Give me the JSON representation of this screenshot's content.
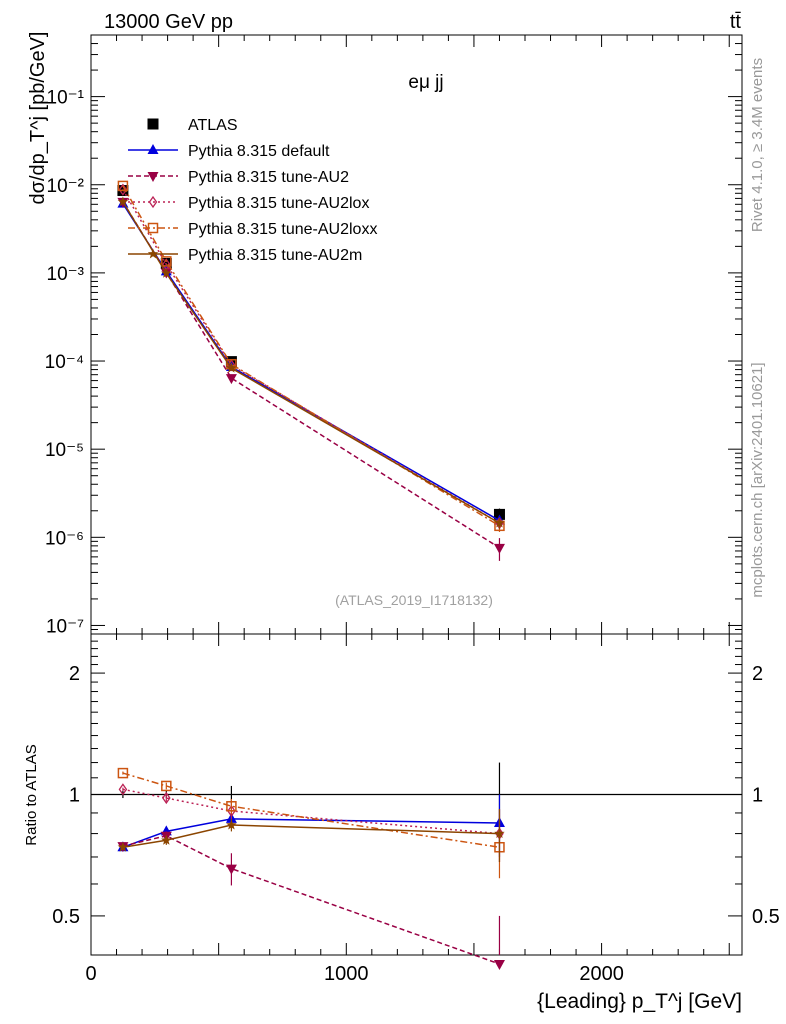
{
  "header": {
    "left": "13000 GeV pp",
    "right": "tt̄",
    "side_top": "Rivet 4.1.0, ≥ 3.4M events",
    "side_bottom": "mcplots.cern.ch [arXiv:2401.10621]"
  },
  "chart_data": [
    {
      "type": "line",
      "panel": "main",
      "yscale": "log",
      "title": "eμ jj",
      "annotation": "(ATLAS_2019_I1718132)",
      "ylabel": "dσ/dp_T^j [pb/GeV]",
      "xlim": [
        0,
        2550
      ],
      "ylim": [
        8e-08,
        0.5
      ],
      "y_ticks": [
        {
          "value": 1e-07,
          "label": "10⁻⁷"
        },
        {
          "value": 1e-06,
          "label": "10⁻⁶"
        },
        {
          "value": 1e-05,
          "label": "10⁻⁵"
        },
        {
          "value": 0.0001,
          "label": "10⁻⁴"
        },
        {
          "value": 0.001,
          "label": "10⁻³"
        },
        {
          "value": 0.01,
          "label": "10⁻²"
        },
        {
          "value": 0.1,
          "label": "10⁻¹"
        }
      ],
      "legend_position": "top-left",
      "x": [
        125,
        295,
        550,
        1600
      ],
      "series": [
        {
          "name": "ATLAS",
          "color": "#000000",
          "marker": "filled-square",
          "dash": "",
          "values": [
            0.0086,
            0.00128,
            9.85e-05,
            1.82e-06
          ],
          "errors": [
            0.0002,
            3e-05,
            4e-06,
            3e-07
          ]
        },
        {
          "name": "Pythia 8.315 default",
          "color": "#0000dd",
          "marker": "filled-triangle-up",
          "dash": "",
          "values": [
            0.0061,
            0.00104,
            8.57e-05,
            1.55e-06
          ],
          "errors": [
            0.0001,
            2e-05,
            2e-06,
            2e-07
          ]
        },
        {
          "name": "Pythia 8.315 tune-AU2",
          "color": "#990044",
          "marker": "filled-triangle-down",
          "dash": "5,3",
          "values": [
            0.0064,
            0.00101,
            6.4e-05,
            7.6e-07
          ],
          "errors": [
            0.0001,
            2e-05,
            4e-06,
            2.2e-07
          ]
        },
        {
          "name": "Pythia 8.315 tune-AU2lox",
          "color": "#bb2255",
          "marker": "open-diamond",
          "dash": "2,3",
          "values": [
            0.0088,
            0.00125,
            8.95e-05,
            1.45e-06
          ],
          "errors": [
            0.0001,
            2e-05,
            3e-06,
            2e-07
          ]
        },
        {
          "name": "Pythia 8.315 tune-AU2loxx",
          "color": "#cc5511",
          "marker": "open-square",
          "dash": "7,3,2,3",
          "values": [
            0.0097,
            0.00135,
            9.2e-05,
            1.35e-06
          ],
          "errors": [
            0.0001,
            2e-05,
            3e-06,
            2e-07
          ]
        },
        {
          "name": "Pythia 8.315 tune-AU2m",
          "color": "#8b4500",
          "marker": "filled-star",
          "dash": "",
          "values": [
            0.0064,
            0.00099,
            8.3e-05,
            1.45e-06
          ],
          "errors": [
            0.0001,
            2e-05,
            2e-06,
            2e-07
          ]
        }
      ]
    },
    {
      "type": "line",
      "panel": "ratio",
      "yscale": "log",
      "ylabel": "Ratio to ATLAS",
      "xlabel": "{Leading} p_T^j [GeV]",
      "xlim": [
        0,
        2550
      ],
      "ylim": [
        0.4,
        2.5
      ],
      "x_ticks": [
        {
          "value": 0,
          "label": "0"
        },
        {
          "value": 1000,
          "label": "1000"
        },
        {
          "value": 2000,
          "label": "2000"
        }
      ],
      "y_ticks": [
        {
          "value": 0.5,
          "label": "0.5"
        },
        {
          "value": 1,
          "label": "1"
        },
        {
          "value": 2,
          "label": "2"
        }
      ],
      "reference_line": 1,
      "x": [
        125,
        295,
        550,
        1600
      ],
      "series": [
        {
          "name": "ATLAS",
          "color": "#000000",
          "marker": "none",
          "dash": "",
          "values": [
            1,
            1,
            1,
            1
          ],
          "errors": [
            0.02,
            0.02,
            0.05,
            0.2
          ]
        },
        {
          "name": "Pythia 8.315 default",
          "color": "#0000dd",
          "marker": "filled-triangle-up",
          "dash": "",
          "values": [
            0.74,
            0.81,
            0.87,
            0.85
          ],
          "errors": [
            0.01,
            0.02,
            0.03,
            0.15
          ]
        },
        {
          "name": "Pythia 8.315 tune-AU2",
          "color": "#990044",
          "marker": "filled-triangle-down",
          "dash": "5,3",
          "values": [
            0.745,
            0.79,
            0.655,
            0.38
          ],
          "errors": [
            0.01,
            0.02,
            0.06,
            0.12
          ]
        },
        {
          "name": "Pythia 8.315 tune-AU2lox",
          "color": "#bb2255",
          "marker": "open-diamond",
          "dash": "2,3",
          "values": [
            1.03,
            0.98,
            0.91,
            0.8
          ],
          "errors": [
            0.01,
            0.02,
            0.04,
            0.12
          ]
        },
        {
          "name": "Pythia 8.315 tune-AU2loxx",
          "color": "#cc5511",
          "marker": "open-square",
          "dash": "7,3,2,3",
          "values": [
            1.13,
            1.05,
            0.935,
            0.74
          ],
          "errors": [
            0.01,
            0.02,
            0.04,
            0.12
          ]
        },
        {
          "name": "Pythia 8.315 tune-AU2m",
          "color": "#8b4500",
          "marker": "filled-star",
          "dash": "",
          "values": [
            0.74,
            0.77,
            0.84,
            0.8
          ],
          "errors": [
            0.01,
            0.02,
            0.03,
            0.12
          ]
        }
      ]
    }
  ]
}
